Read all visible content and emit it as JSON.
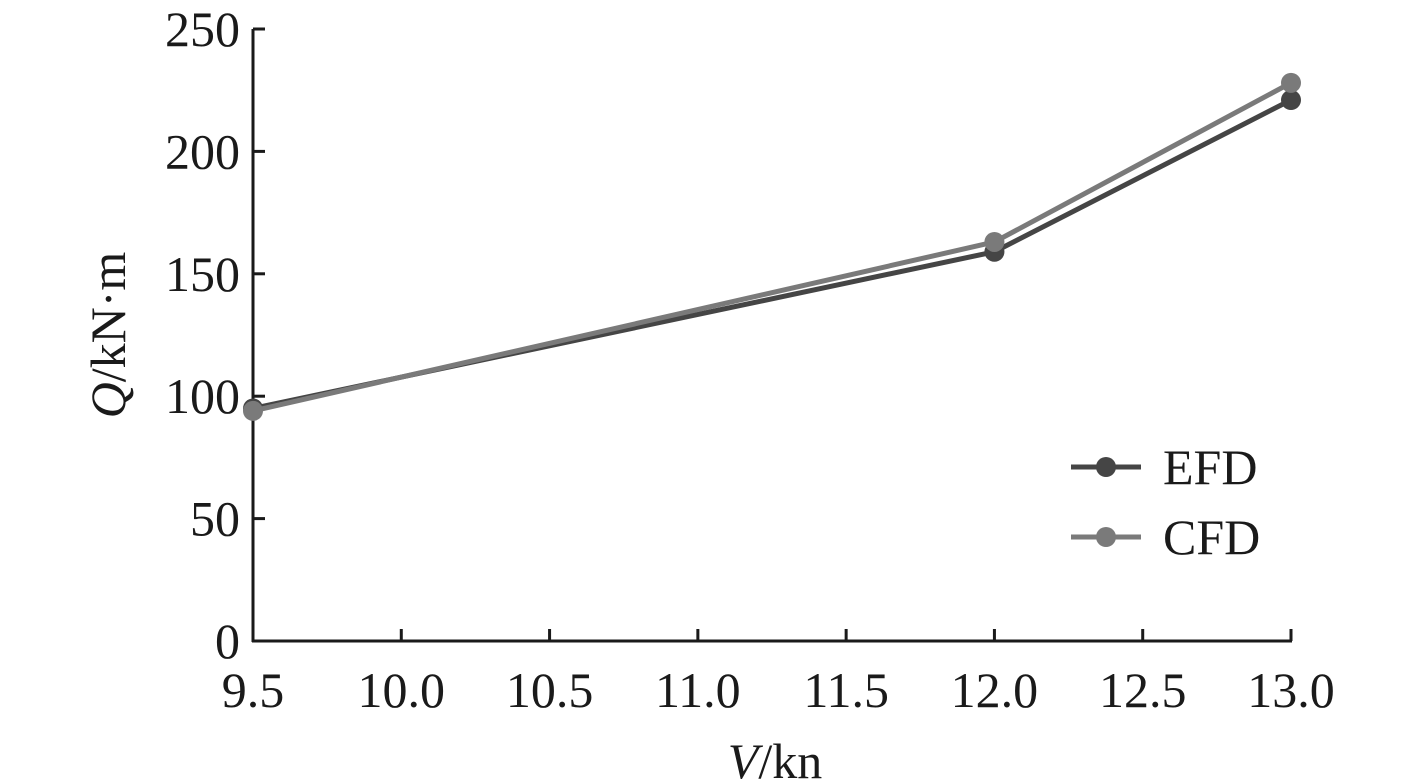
{
  "chart_data": {
    "type": "line",
    "title": "",
    "xlabel": {
      "symbol": "V",
      "unit": "/kn"
    },
    "ylabel": {
      "symbol": "Q",
      "unit": "/kN·m"
    },
    "xlim": [
      9.5,
      13.0
    ],
    "ylim": [
      0,
      250
    ],
    "xticks": [
      "9.5",
      "10.0",
      "10.5",
      "11.0",
      "11.5",
      "12.0",
      "12.5",
      "13.0"
    ],
    "yticks": [
      "0",
      "50",
      "100",
      "150",
      "200",
      "250"
    ],
    "grid": false,
    "legend_position": "right",
    "series": [
      {
        "name": "EFD",
        "color": "#454545",
        "x": [
          9.5,
          12.0,
          13.0
        ],
        "y": [
          95,
          159,
          221
        ]
      },
      {
        "name": "CFD",
        "color": "#7a7a7a",
        "x": [
          9.5,
          12.0,
          13.0
        ],
        "y": [
          94,
          163,
          228
        ]
      }
    ]
  }
}
